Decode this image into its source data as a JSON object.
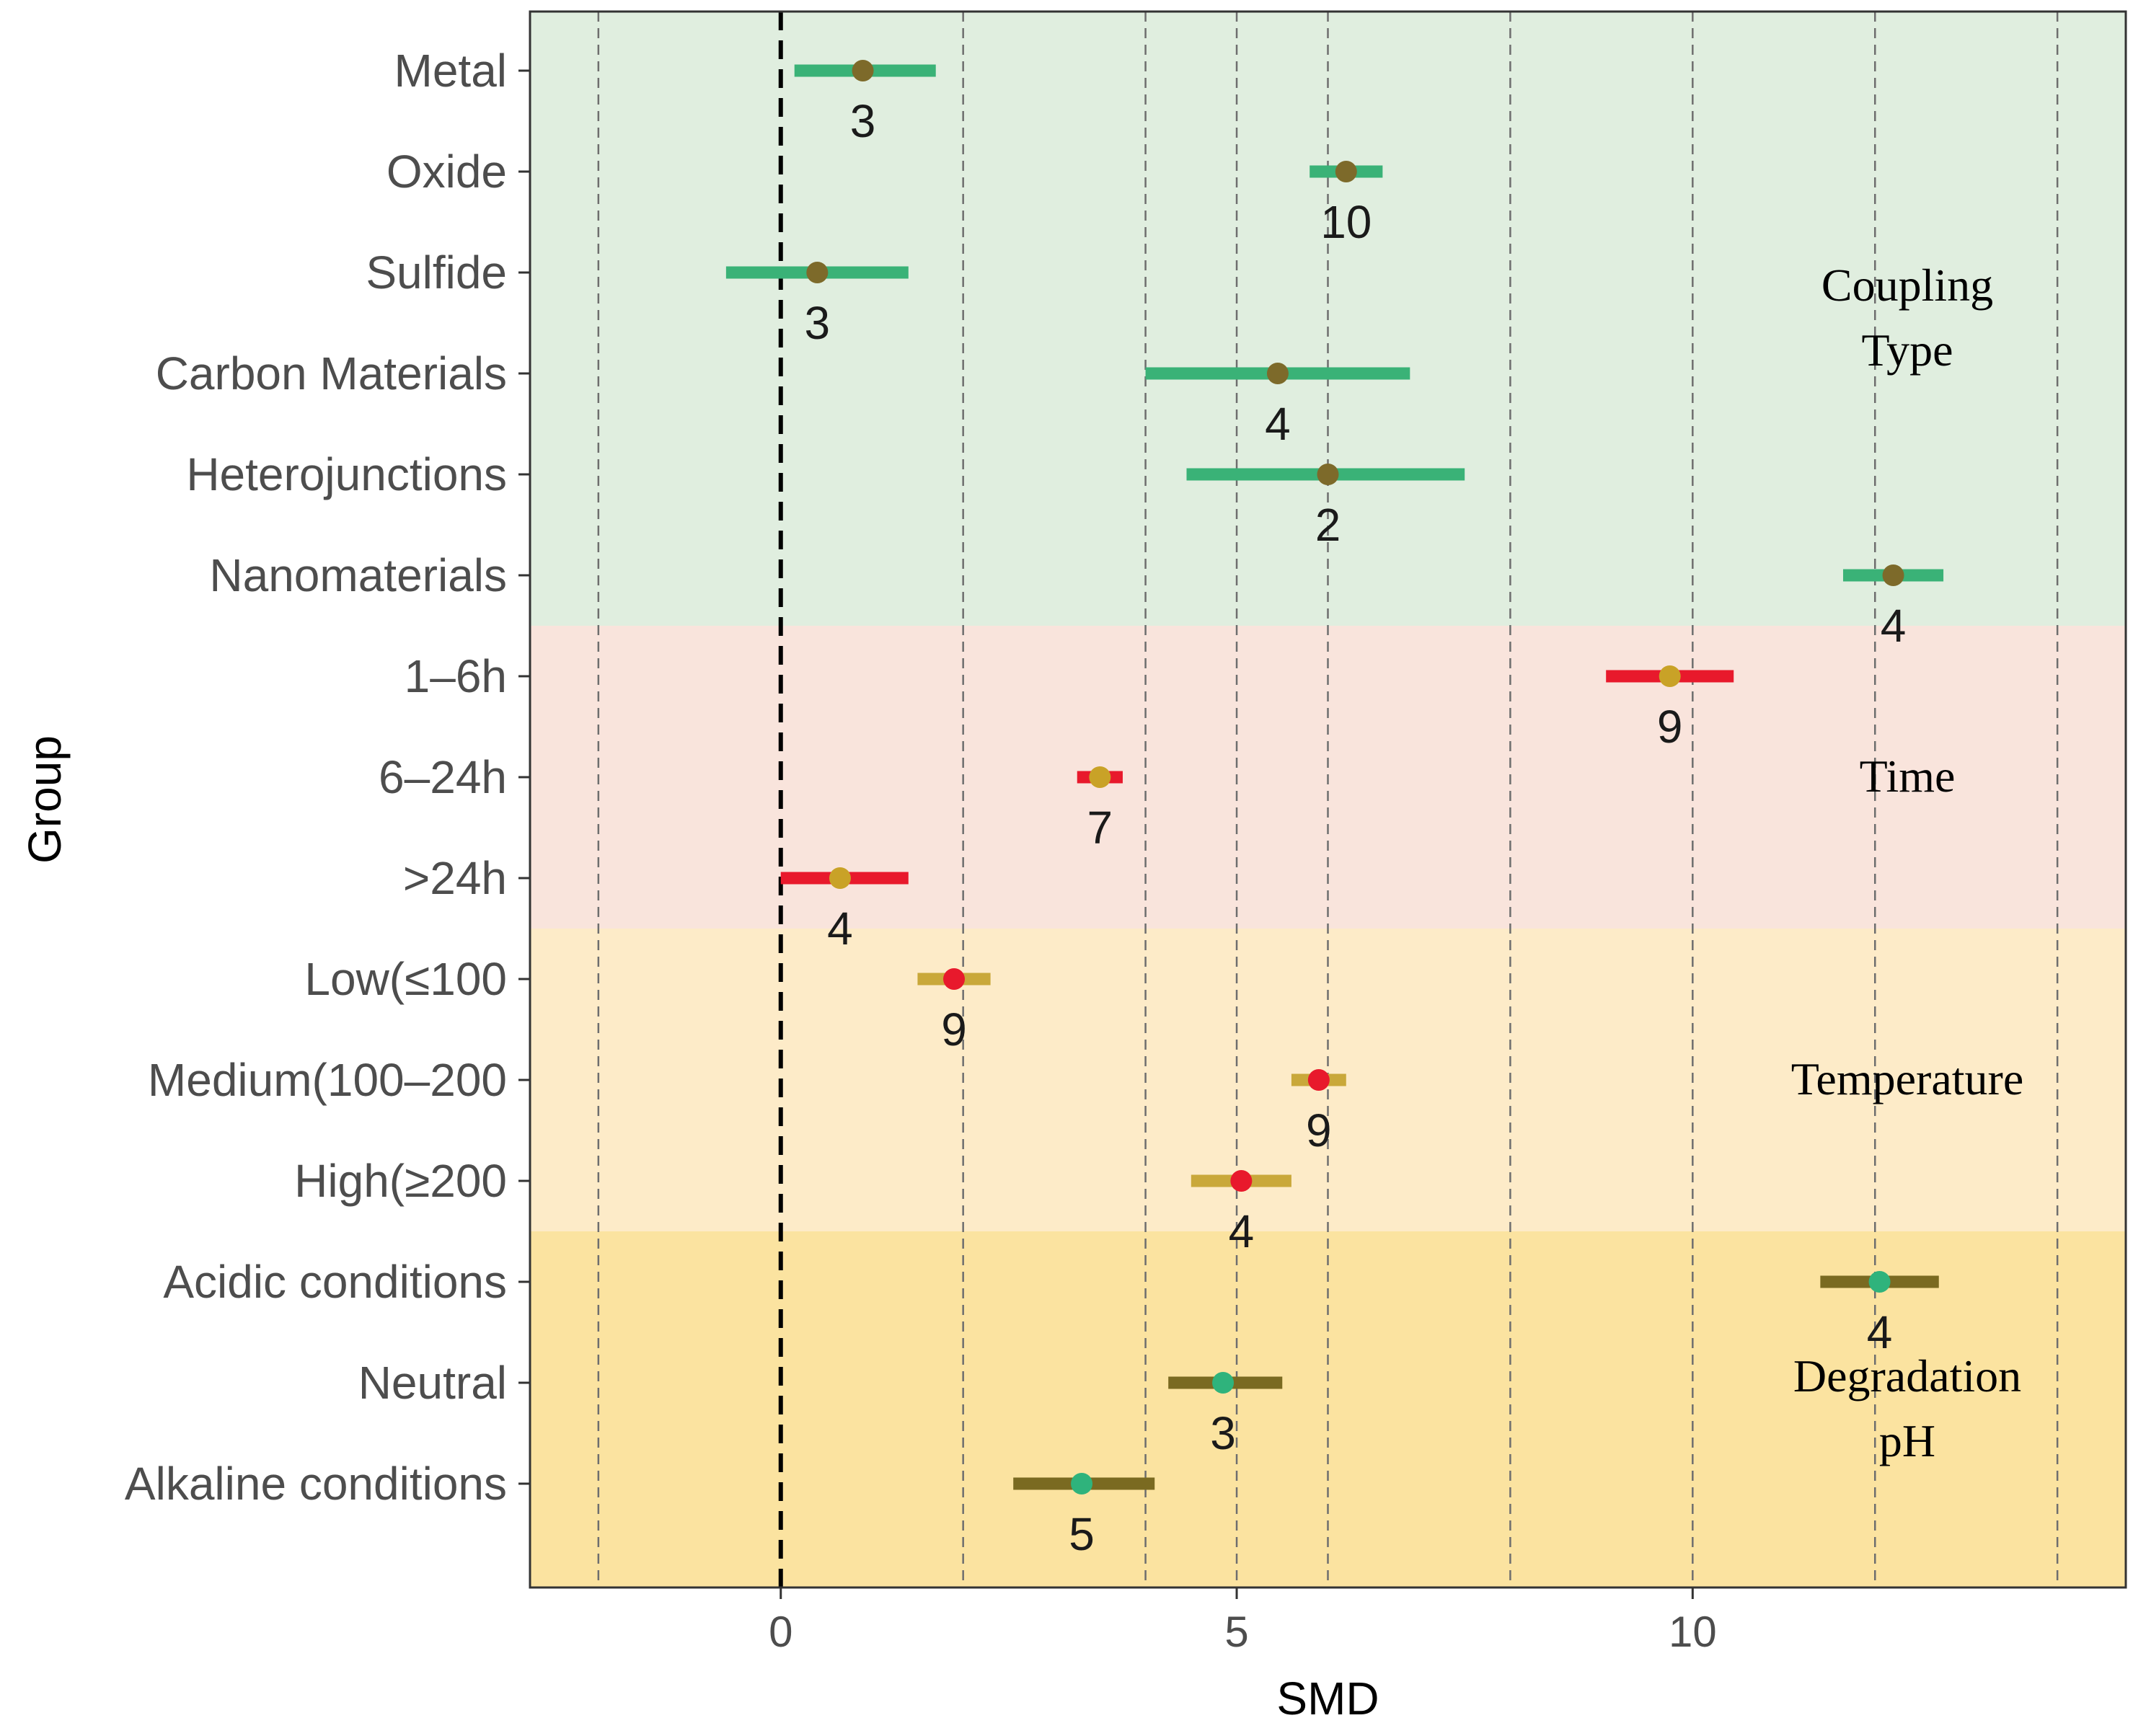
{
  "chart_data": {
    "type": "forest",
    "xlabel": "SMD",
    "ylabel": "Group",
    "xlim": [
      -2.75,
      14.75
    ],
    "x_ticks": [
      0,
      5,
      10
    ],
    "minor_gridlines": [
      -2,
      2,
      4,
      6,
      8,
      12,
      14
    ],
    "reference_line": 0,
    "categories": [
      "Metal",
      "Oxide",
      "Sulfide",
      "Carbon Materials",
      "Heterojunctions",
      "Nanomaterials",
      "1–6h",
      "6–24h",
      ">24h",
      "Low(≤100",
      "Medium(100–200",
      "High(≥200",
      "Acidic conditions",
      "Neutral",
      "Alkaline conditions"
    ],
    "groups": [
      {
        "name": "Coupling Type",
        "lines": [
          "Coupling",
          "Type"
        ],
        "background": "#e0eedf",
        "bar_color": "#3ab277",
        "point_color": "#7d6a2a",
        "rows": [
          {
            "label": "Metal",
            "smd": 0.9,
            "lo": 0.15,
            "hi": 1.7,
            "n": "3"
          },
          {
            "label": "Oxide",
            "smd": 6.2,
            "lo": 5.8,
            "hi": 6.6,
            "n": "10"
          },
          {
            "label": "Sulfide",
            "smd": 0.4,
            "lo": -0.6,
            "hi": 1.4,
            "n": "3"
          },
          {
            "label": "Carbon Materials",
            "smd": 5.45,
            "lo": 4.0,
            "hi": 6.9,
            "n": "4"
          },
          {
            "label": "Heterojunctions",
            "smd": 6.0,
            "lo": 4.45,
            "hi": 7.5,
            "n": "2"
          },
          {
            "label": "Nanomaterials",
            "smd": 12.2,
            "lo": 11.65,
            "hi": 12.75,
            "n": "4"
          }
        ]
      },
      {
        "name": "Time",
        "lines": [
          "Time"
        ],
        "background": "#f9e4dc",
        "bar_color": "#e8192c",
        "point_color": "#c9a227",
        "rows": [
          {
            "label": "1–6h",
            "smd": 9.75,
            "lo": 9.05,
            "hi": 10.45,
            "n": "9"
          },
          {
            "label": "6–24h",
            "smd": 3.5,
            "lo": 3.25,
            "hi": 3.75,
            "n": "7"
          },
          {
            "label": ">24h",
            "smd": 0.65,
            "lo": 0.0,
            "hi": 1.4,
            "n": "4"
          }
        ]
      },
      {
        "name": "Temperature",
        "lines": [
          "Temperature"
        ],
        "background": "#fdebc8",
        "bar_color": "#c9a83a",
        "point_color": "#e8192c",
        "rows": [
          {
            "label": "Low(≤100",
            "smd": 1.9,
            "lo": 1.5,
            "hi": 2.3,
            "n": "9"
          },
          {
            "label": "Medium(100–200",
            "smd": 5.9,
            "lo": 5.6,
            "hi": 6.2,
            "n": "9"
          },
          {
            "label": "High(≥200",
            "smd": 5.05,
            "lo": 4.5,
            "hi": 5.6,
            "n": "4"
          }
        ]
      },
      {
        "name": "Degradation pH",
        "lines": [
          "Degradation",
          "pH"
        ],
        "background": "#fbe3a0",
        "bar_color": "#7a6a21",
        "point_color": "#2fb37c",
        "rows": [
          {
            "label": "Acidic conditions",
            "smd": 12.05,
            "lo": 11.4,
            "hi": 12.7,
            "n": "4"
          },
          {
            "label": "Neutral",
            "smd": 4.85,
            "lo": 4.25,
            "hi": 5.5,
            "n": "3"
          },
          {
            "label": "Alkaline conditions",
            "smd": 3.3,
            "lo": 2.55,
            "hi": 4.1,
            "n": "5"
          }
        ]
      }
    ]
  }
}
